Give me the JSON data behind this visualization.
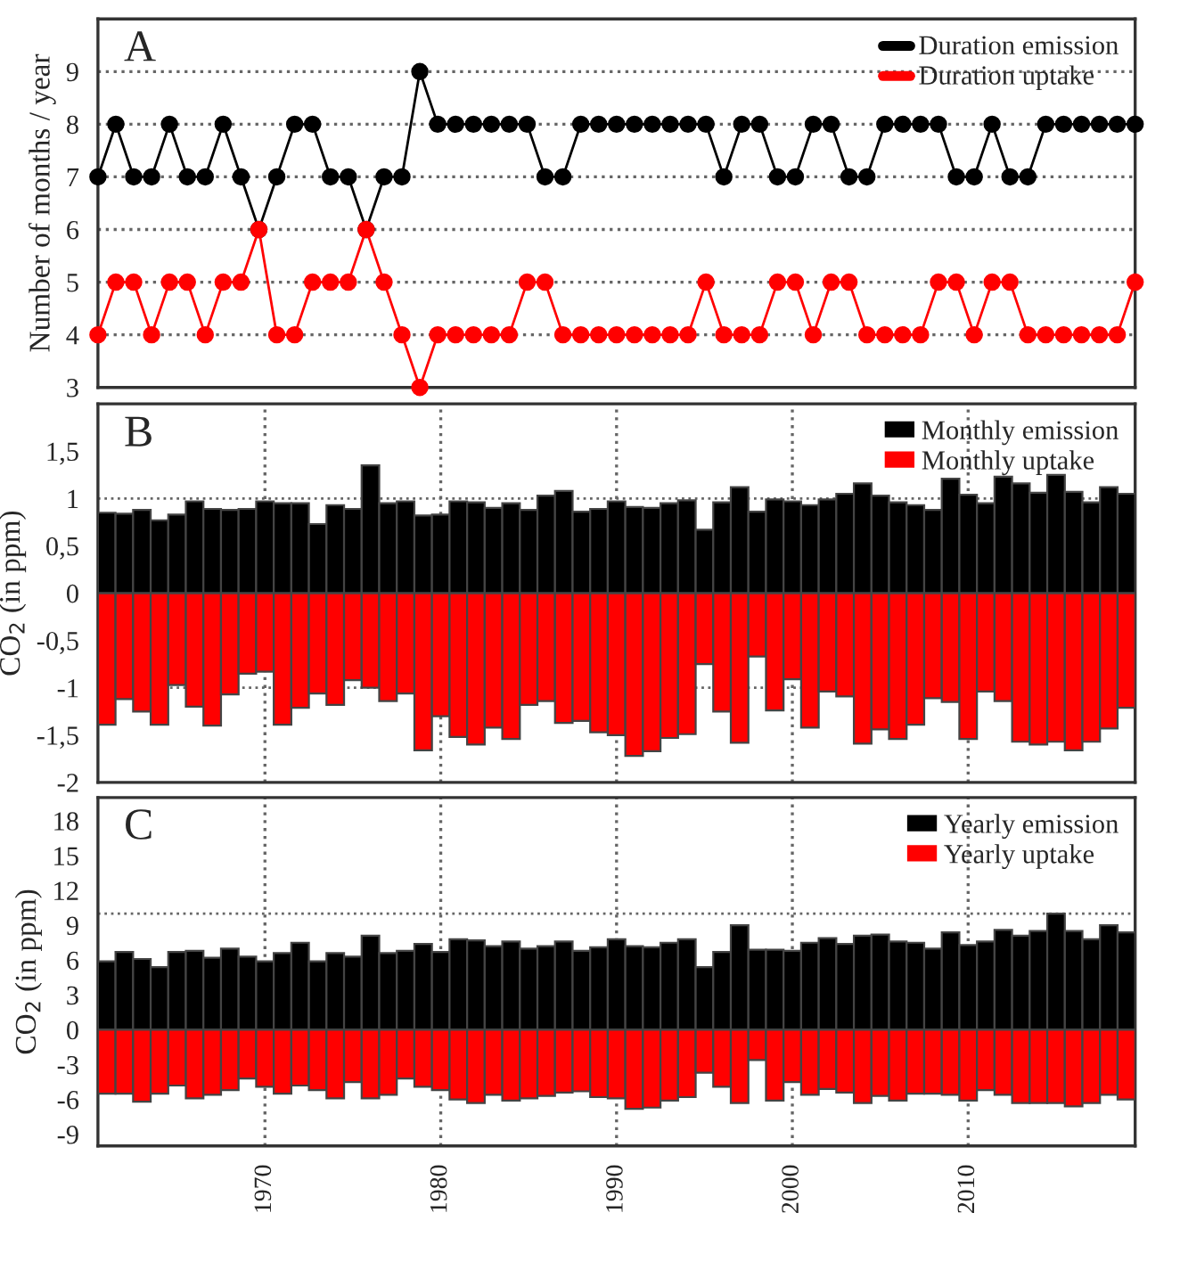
{
  "chart_data": [
    {
      "type": "line",
      "ylabel": "Number of months / year",
      "annotations": [
        "A"
      ],
      "legend": "top right",
      "grid": "y",
      "marker": "circle",
      "line_style": "solid",
      "categories": [
        null,
        null,
        null,
        null,
        null,
        null,
        null,
        null,
        null,
        null,
        null,
        null,
        null,
        null,
        null,
        null,
        null,
        null,
        null,
        null,
        null,
        null,
        null,
        null,
        null,
        null,
        null,
        null,
        null,
        null,
        null,
        null,
        null,
        null,
        null,
        null,
        null,
        null,
        null,
        null,
        null,
        null,
        null,
        null,
        null,
        null,
        null,
        null,
        null,
        null,
        null,
        null,
        null,
        null,
        null,
        null,
        null,
        null,
        null
      ],
      "ylim": [
        3,
        10
      ],
      "yticks": [
        3,
        4,
        5,
        6,
        7,
        8,
        9
      ],
      "series": [
        {
          "name": "Duration emission",
          "color": "#000000",
          "values": [
            7,
            8,
            7,
            7,
            8,
            7,
            7,
            8,
            7,
            6,
            7,
            8,
            8,
            7,
            7,
            6,
            7,
            7,
            9,
            8,
            8,
            8,
            8,
            8,
            8,
            7,
            7,
            8,
            8,
            8,
            8,
            8,
            8,
            8,
            8,
            7,
            8,
            8,
            7,
            7,
            8,
            8,
            7,
            7,
            8,
            8,
            8,
            8,
            7,
            7,
            8,
            7,
            7,
            8,
            8,
            8,
            8,
            8,
            8
          ]
        },
        {
          "name": "Duration uptake",
          "color": "#ff0000",
          "values": [
            4,
            5,
            5,
            4,
            5,
            5,
            4,
            5,
            5,
            6,
            4,
            4,
            5,
            5,
            5,
            6,
            5,
            4,
            3,
            4,
            4,
            4,
            4,
            4,
            5,
            5,
            4,
            4,
            4,
            4,
            4,
            4,
            4,
            4,
            5,
            4,
            4,
            4,
            5,
            5,
            4,
            5,
            5,
            4,
            4,
            4,
            4,
            5,
            5,
            4,
            5,
            5,
            4,
            4,
            4,
            4,
            4,
            4,
            5
          ]
        }
      ]
    },
    {
      "type": "bar",
      "stacked": true,
      "ylabel": "CO$_{2}$ (in ppm)",
      "annotations": [
        "B"
      ],
      "legend": "top right",
      "grid": "x",
      "tick_labels": "y",
      "x": [
        1961,
        1962,
        1963,
        1964,
        1965,
        1966,
        1967,
        1968,
        1969,
        1970,
        1971,
        1972,
        1973,
        1974,
        1975,
        1976,
        1977,
        1978,
        1979,
        1980,
        1981,
        1982,
        1983,
        1984,
        1985,
        1986,
        1987,
        1988,
        1989,
        1990,
        1991,
        1992,
        1993,
        1994,
        1995,
        1996,
        1997,
        1998,
        1999,
        2000,
        2001,
        2002,
        2003,
        2004,
        2005,
        2006,
        2007,
        2008,
        2009,
        2010,
        2011,
        2012,
        2013,
        2014,
        2015,
        2016,
        2017,
        2018,
        2019
      ],
      "xlim": [
        1960.5,
        2019.5
      ],
      "xticks": [
        {
          "value": 1970,
          "label": null
        },
        {
          "value": 1980,
          "label": null
        },
        {
          "value": 1990,
          "label": null
        },
        {
          "value": 2000,
          "label": null
        },
        {
          "value": 2010,
          "label": null
        }
      ],
      "ylim": [
        -2,
        2
      ],
      "yticks": [
        -2,
        {
          "value": -1.5,
          "label": "-1,5"
        },
        -1,
        {
          "value": -0.5,
          "label": "-0,5"
        },
        0,
        {
          "value": 0.5,
          "label": "0,5"
        },
        1,
        {
          "value": 1.5,
          "label": "1,5"
        }
      ],
      "ref_lines": [
        {
          "axis": "y",
          "value": 1,
          "label": null,
          "line_style": "dotted"
        },
        {
          "axis": "y",
          "value": -1,
          "label": null,
          "line_style": "dotted"
        }
      ],
      "series": [
        {
          "name": "Monthly emission",
          "color": "#000000",
          "values": [
            0.85,
            0.84,
            0.88,
            0.77,
            0.83,
            0.97,
            0.89,
            0.88,
            0.89,
            0.97,
            0.95,
            0.95,
            0.73,
            0.93,
            0.89,
            1.35,
            0.95,
            0.97,
            0.82,
            0.83,
            0.97,
            0.96,
            0.9,
            0.95,
            0.88,
            1.03,
            1.08,
            0.86,
            0.89,
            0.97,
            0.91,
            0.9,
            0.95,
            0.98,
            0.67,
            0.96,
            1.12,
            0.86,
            0.99,
            0.97,
            0.93,
            0.99,
            1.05,
            1.16,
            1.03,
            0.96,
            0.93,
            0.88,
            1.21,
            1.04,
            0.95,
            1.23,
            1.16,
            1.06,
            1.25,
            1.07,
            0.96,
            1.12,
            1.05
          ]
        },
        {
          "name": "Monthly uptake",
          "color": "#ff0000",
          "values": [
            -1.39,
            -1.12,
            -1.25,
            -1.39,
            -0.97,
            -1.2,
            -1.4,
            -1.07,
            -0.85,
            -0.83,
            -1.39,
            -1.21,
            -1.06,
            -1.18,
            -0.92,
            -1.0,
            -1.14,
            -1.06,
            -1.66,
            -1.3,
            -1.52,
            -1.6,
            -1.42,
            -1.54,
            -1.18,
            -1.14,
            -1.37,
            -1.35,
            -1.47,
            -1.5,
            -1.72,
            -1.67,
            -1.53,
            -1.49,
            -0.75,
            -1.25,
            -1.58,
            -0.67,
            -1.24,
            -0.91,
            -1.42,
            -1.04,
            -1.09,
            -1.59,
            -1.44,
            -1.54,
            -1.39,
            -1.11,
            -1.15,
            -1.54,
            -1.04,
            -1.14,
            -1.57,
            -1.6,
            -1.57,
            -1.66,
            -1.57,
            -1.43,
            -1.21
          ]
        }
      ]
    },
    {
      "type": "bar",
      "stacked": true,
      "ylabel": "CO$_{2}$ (in ppm)",
      "annotations": [
        "C"
      ],
      "legend": "top right",
      "grid": "x",
      "x": [
        1961,
        1962,
        1963,
        1964,
        1965,
        1966,
        1967,
        1968,
        1969,
        1970,
        1971,
        1972,
        1973,
        1974,
        1975,
        1976,
        1977,
        1978,
        1979,
        1980,
        1981,
        1982,
        1983,
        1984,
        1985,
        1986,
        1987,
        1988,
        1989,
        1990,
        1991,
        1992,
        1993,
        1994,
        1995,
        1996,
        1997,
        1998,
        1999,
        2000,
        2001,
        2002,
        2003,
        2004,
        2005,
        2006,
        2007,
        2008,
        2009,
        2010,
        2011,
        2012,
        2013,
        2014,
        2015,
        2016,
        2017,
        2018,
        2019
      ],
      "xlim": [
        1960.5,
        2019.5
      ],
      "xticks": [
        1970,
        1980,
        1990,
        2000,
        2010
      ],
      "ylim": [
        -10,
        20
      ],
      "yticks": [
        -9,
        -6,
        -3,
        0,
        3,
        6,
        9,
        12,
        15,
        18
      ],
      "ref_lines": [
        {
          "axis": "y",
          "value": 10,
          "label": null,
          "line_style": "dotted"
        }
      ],
      "series": [
        {
          "name": "Yearly emission",
          "color": "#000000",
          "values": [
            5.9,
            6.7,
            6.1,
            5.4,
            6.7,
            6.8,
            6.2,
            7.0,
            6.3,
            5.9,
            6.6,
            7.5,
            5.9,
            6.6,
            6.3,
            8.1,
            6.6,
            6.8,
            7.4,
            6.7,
            7.8,
            7.7,
            7.2,
            7.6,
            7.0,
            7.2,
            7.6,
            6.8,
            7.1,
            7.8,
            7.2,
            7.1,
            7.5,
            7.8,
            5.4,
            6.7,
            9.0,
            6.9,
            6.9,
            6.8,
            7.5,
            7.9,
            7.4,
            8.1,
            8.2,
            7.6,
            7.5,
            7.0,
            8.4,
            7.3,
            7.6,
            8.6,
            8.1,
            8.5,
            10.0,
            8.5,
            7.8,
            9.0,
            8.4
          ]
        },
        {
          "name": "Yearly uptake",
          "color": "#ff0000",
          "values": [
            -5.5,
            -5.5,
            -6.2,
            -5.5,
            -4.8,
            -5.9,
            -5.6,
            -5.2,
            -4.2,
            -4.9,
            -5.5,
            -4.8,
            -5.2,
            -5.9,
            -4.5,
            -5.9,
            -5.6,
            -4.2,
            -4.9,
            -5.2,
            -6.0,
            -6.3,
            -5.6,
            -6.1,
            -5.9,
            -5.7,
            -5.4,
            -5.3,
            -5.8,
            -5.9,
            -6.8,
            -6.7,
            -6.1,
            -5.8,
            -3.7,
            -4.9,
            -6.3,
            -2.6,
            -6.1,
            -4.5,
            -5.6,
            -5.1,
            -5.4,
            -6.3,
            -5.7,
            -6.1,
            -5.5,
            -5.5,
            -5.6,
            -6.1,
            -5.2,
            -5.6,
            -6.3,
            -6.3,
            -6.3,
            -6.6,
            -6.3,
            -5.6,
            -6.0
          ]
        }
      ]
    }
  ]
}
